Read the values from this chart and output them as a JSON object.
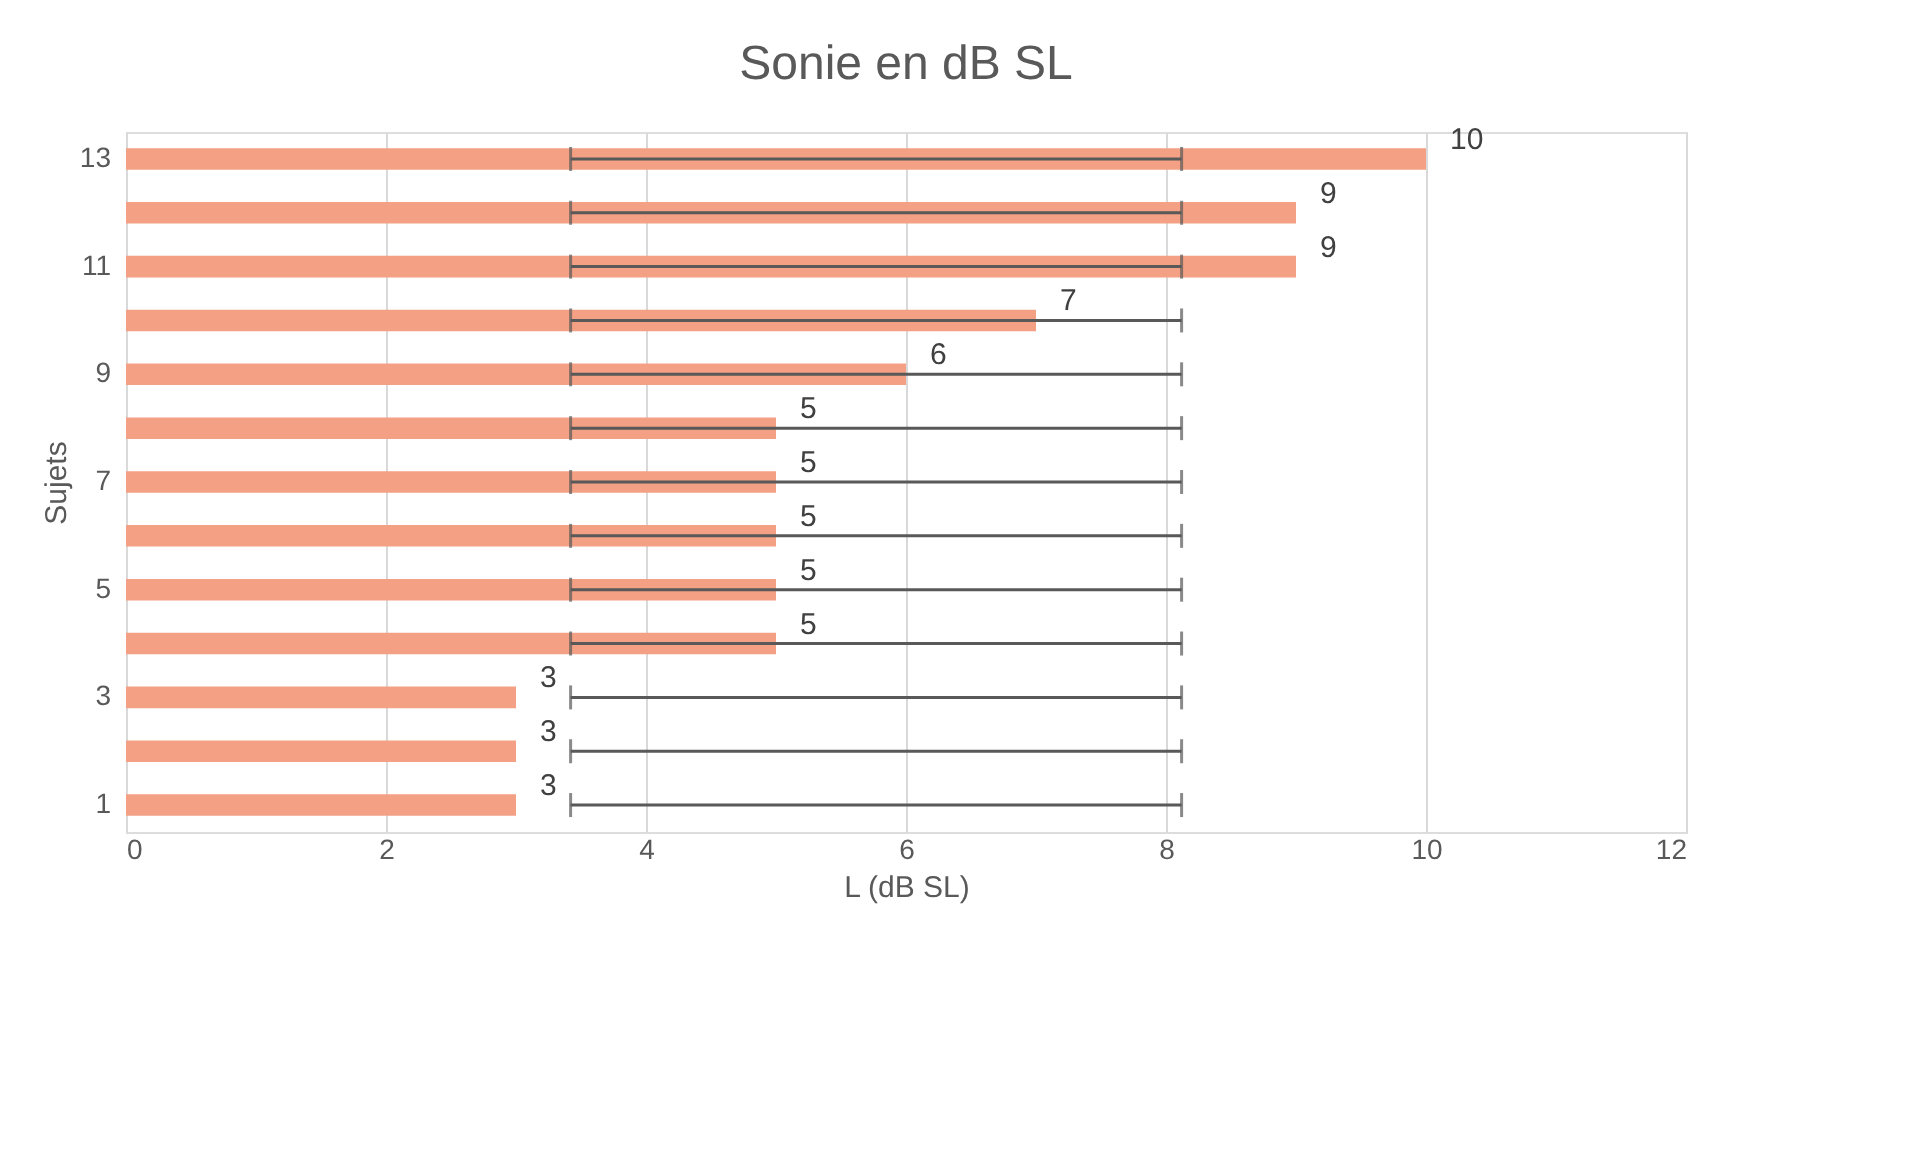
{
  "chart_data": {
    "type": "bar",
    "orientation": "horizontal",
    "title": "Sonie en dB SL",
    "xlabel": "L (dB SL)",
    "ylabel": "Sujets",
    "categories": [
      "13",
      null,
      "11",
      null,
      "9",
      null,
      "7",
      null,
      "5",
      null,
      "3",
      null,
      "1"
    ],
    "values": [
      10,
      9,
      9,
      7,
      6,
      5,
      5,
      5,
      5,
      5,
      3,
      3,
      3
    ],
    "color": "#f4a084",
    "errors": [
      [
        3.42,
        8.12
      ],
      [
        3.42,
        8.12
      ],
      [
        3.42,
        8.12
      ],
      [
        3.42,
        8.12
      ],
      [
        3.42,
        8.12
      ],
      [
        3.42,
        8.12
      ],
      [
        3.42,
        8.12
      ],
      [
        3.42,
        8.12
      ],
      [
        3.42,
        8.12
      ],
      [
        3.42,
        8.12
      ],
      [
        3.42,
        8.12
      ],
      [
        3.42,
        8.12
      ],
      [
        3.42,
        8.12
      ]
    ],
    "xlim": [
      0,
      12
    ],
    "xticks": [
      0,
      2,
      4,
      6,
      8,
      10,
      12
    ],
    "grid": "x",
    "data_labels": true
  }
}
